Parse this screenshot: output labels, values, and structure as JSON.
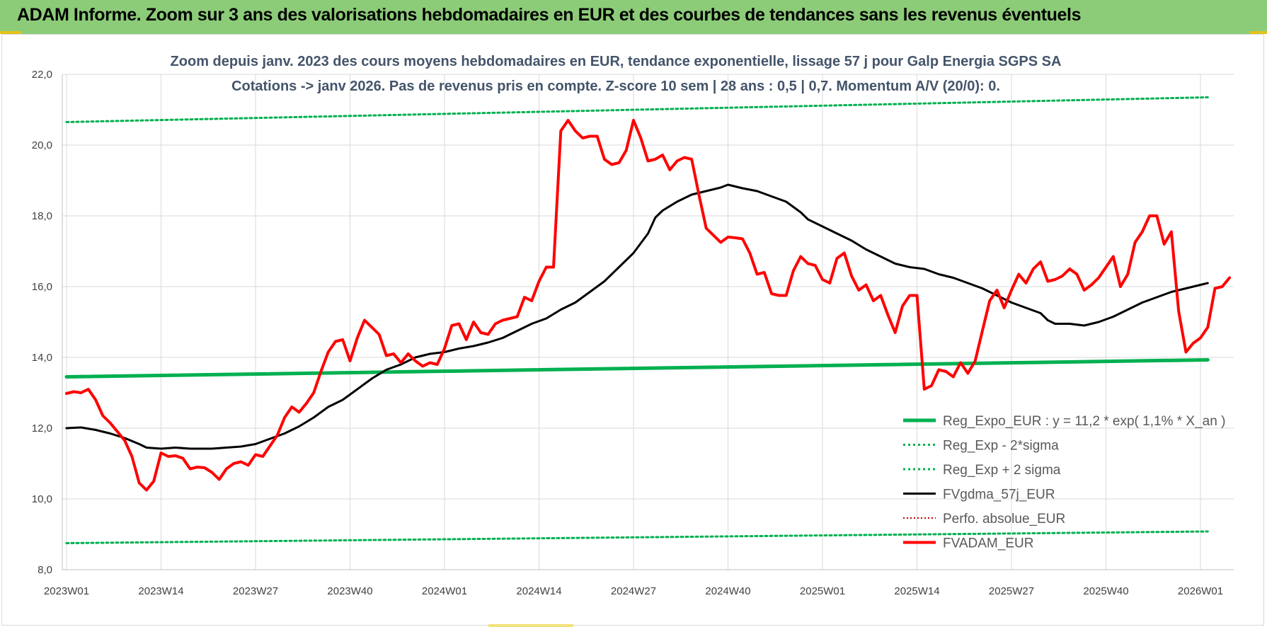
{
  "header": {
    "title": "ADAM Informe. Zoom sur 3 ans des valorisations hebdomadaires en EUR et des courbes de tendances sans les revenus éventuels"
  },
  "colors": {
    "header_bg": "#8ccc78",
    "reg_expo": "#00b050",
    "sigma": "#00b050",
    "fvgdma": "#000000",
    "perfo": "#c00000",
    "fvadam": "#ff0000",
    "grid": "#d9d9d9",
    "axis_text": "#404040",
    "title_text": "#44546a"
  },
  "chart_data": {
    "type": "line",
    "title": [
      "Zoom depuis janv. 2023 des cours moyens hebdomadaires en EUR, tendance exponentielle, lissage 57 j pour Galp Energia SGPS SA",
      "Cotations -> janv 2026. Pas de revenus pris en compte. Z-score 10 sem | 28 ans : 0,5 | 0,7. Momentum A/V (20/0): 0."
    ],
    "xlabel": "",
    "ylabel": "",
    "ylim": [
      8,
      22
    ],
    "yticks": [
      {
        "value": 8,
        "label": "8,0"
      },
      {
        "value": 10,
        "label": "10,0"
      },
      {
        "value": 12,
        "label": "12,0"
      },
      {
        "value": 14,
        "label": "14,0"
      },
      {
        "value": 16,
        "label": "16,0"
      },
      {
        "value": 18,
        "label": "18,0"
      },
      {
        "value": 20,
        "label": "20,0"
      },
      {
        "value": 22,
        "label": "22,0"
      }
    ],
    "xlim": [
      0,
      157
    ],
    "xticks": [
      {
        "week": 0,
        "label": "2023W01"
      },
      {
        "week": 13,
        "label": "2023W14"
      },
      {
        "week": 26,
        "label": "2023W27"
      },
      {
        "week": 39,
        "label": "2023W40"
      },
      {
        "week": 52,
        "label": "2024W01"
      },
      {
        "week": 65,
        "label": "2024W14"
      },
      {
        "week": 78,
        "label": "2024W27"
      },
      {
        "week": 91,
        "label": "2024W40"
      },
      {
        "week": 104,
        "label": "2025W01"
      },
      {
        "week": 117,
        "label": "2025W14"
      },
      {
        "week": 130,
        "label": "2025W27"
      },
      {
        "week": 143,
        "label": "2025W40"
      },
      {
        "week": 156,
        "label": "2026W01"
      }
    ],
    "grid": true,
    "legend_position": "bottom-right",
    "series": [
      {
        "name": "Reg_Expo_EUR : y = 11,2 * exp( 1,1% *  X_an )",
        "style": "thick-solid",
        "points": [
          [
            0,
            13.45
          ],
          [
            157,
            13.93
          ]
        ]
      },
      {
        "name": "Reg_Exp - 2*sigma",
        "style": "dotted",
        "points": [
          [
            0,
            8.75
          ],
          [
            157,
            9.08
          ]
        ]
      },
      {
        "name": "Reg_Exp + 2 sigma",
        "style": "dotted",
        "points": [
          [
            0,
            20.65
          ],
          [
            157,
            21.35
          ]
        ]
      },
      {
        "name": "FVgdma_57j_EUR",
        "style": "solid-black",
        "points": [
          [
            0,
            12.0
          ],
          [
            2,
            12.02
          ],
          [
            4,
            11.95
          ],
          [
            6,
            11.85
          ],
          [
            8,
            11.72
          ],
          [
            10,
            11.55
          ],
          [
            11,
            11.45
          ],
          [
            13,
            11.42
          ],
          [
            15,
            11.45
          ],
          [
            17,
            11.42
          ],
          [
            20,
            11.42
          ],
          [
            22,
            11.45
          ],
          [
            24,
            11.48
          ],
          [
            26,
            11.55
          ],
          [
            28,
            11.7
          ],
          [
            30,
            11.85
          ],
          [
            32,
            12.05
          ],
          [
            34,
            12.3
          ],
          [
            36,
            12.6
          ],
          [
            38,
            12.8
          ],
          [
            40,
            13.1
          ],
          [
            42,
            13.4
          ],
          [
            44,
            13.65
          ],
          [
            46,
            13.8
          ],
          [
            48,
            14.0
          ],
          [
            50,
            14.1
          ],
          [
            52,
            14.15
          ],
          [
            54,
            14.25
          ],
          [
            56,
            14.32
          ],
          [
            58,
            14.42
          ],
          [
            60,
            14.55
          ],
          [
            62,
            14.75
          ],
          [
            64,
            14.95
          ],
          [
            66,
            15.1
          ],
          [
            68,
            15.35
          ],
          [
            70,
            15.55
          ],
          [
            72,
            15.85
          ],
          [
            74,
            16.15
          ],
          [
            76,
            16.55
          ],
          [
            78,
            16.95
          ],
          [
            80,
            17.5
          ],
          [
            81,
            17.95
          ],
          [
            82,
            18.15
          ],
          [
            84,
            18.4
          ],
          [
            86,
            18.6
          ],
          [
            88,
            18.7
          ],
          [
            90,
            18.8
          ],
          [
            91,
            18.88
          ],
          [
            93,
            18.78
          ],
          [
            95,
            18.7
          ],
          [
            97,
            18.55
          ],
          [
            99,
            18.4
          ],
          [
            101,
            18.1
          ],
          [
            102,
            17.9
          ],
          [
            104,
            17.7
          ],
          [
            106,
            17.5
          ],
          [
            108,
            17.3
          ],
          [
            110,
            17.05
          ],
          [
            112,
            16.85
          ],
          [
            114,
            16.65
          ],
          [
            116,
            16.55
          ],
          [
            118,
            16.5
          ],
          [
            120,
            16.35
          ],
          [
            122,
            16.25
          ],
          [
            124,
            16.1
          ],
          [
            126,
            15.95
          ],
          [
            128,
            15.75
          ],
          [
            130,
            15.55
          ],
          [
            132,
            15.4
          ],
          [
            134,
            15.25
          ],
          [
            135,
            15.05
          ],
          [
            136,
            14.95
          ],
          [
            138,
            14.95
          ],
          [
            140,
            14.9
          ],
          [
            142,
            15.0
          ],
          [
            144,
            15.15
          ],
          [
            146,
            15.35
          ],
          [
            148,
            15.55
          ],
          [
            150,
            15.7
          ],
          [
            152,
            15.85
          ],
          [
            154,
            15.95
          ],
          [
            156,
            16.05
          ],
          [
            157,
            16.1
          ]
        ]
      },
      {
        "name": "Perfo. absolue_EUR",
        "style": "dotted-red",
        "points": []
      },
      {
        "name": "FVADAM_EUR",
        "style": "thick-red",
        "points": [
          [
            0,
            12.98
          ],
          [
            1,
            13.03
          ],
          [
            2,
            13.0
          ],
          [
            3,
            13.1
          ],
          [
            4,
            12.8
          ],
          [
            5,
            12.35
          ],
          [
            6,
            12.15
          ],
          [
            7,
            11.9
          ],
          [
            8,
            11.65
          ],
          [
            9,
            11.2
          ],
          [
            10,
            10.45
          ],
          [
            11,
            10.25
          ],
          [
            12,
            10.5
          ],
          [
            13,
            11.3
          ],
          [
            14,
            11.2
          ],
          [
            15,
            11.22
          ],
          [
            16,
            11.15
          ],
          [
            17,
            10.85
          ],
          [
            18,
            10.9
          ],
          [
            19,
            10.88
          ],
          [
            20,
            10.75
          ],
          [
            21,
            10.55
          ],
          [
            22,
            10.85
          ],
          [
            23,
            11.0
          ],
          [
            24,
            11.05
          ],
          [
            25,
            10.95
          ],
          [
            26,
            11.25
          ],
          [
            27,
            11.2
          ],
          [
            28,
            11.5
          ],
          [
            29,
            11.8
          ],
          [
            30,
            12.3
          ],
          [
            31,
            12.6
          ],
          [
            32,
            12.45
          ],
          [
            33,
            12.7
          ],
          [
            34,
            13.0
          ],
          [
            35,
            13.6
          ],
          [
            36,
            14.15
          ],
          [
            37,
            14.45
          ],
          [
            38,
            14.5
          ],
          [
            39,
            13.9
          ],
          [
            40,
            14.55
          ],
          [
            41,
            15.05
          ],
          [
            42,
            14.85
          ],
          [
            43,
            14.65
          ],
          [
            44,
            14.05
          ],
          [
            45,
            14.1
          ],
          [
            46,
            13.85
          ],
          [
            47,
            14.1
          ],
          [
            48,
            13.9
          ],
          [
            49,
            13.75
          ],
          [
            50,
            13.85
          ],
          [
            51,
            13.8
          ],
          [
            52,
            14.25
          ],
          [
            53,
            14.9
          ],
          [
            54,
            14.95
          ],
          [
            55,
            14.5
          ],
          [
            56,
            15.0
          ],
          [
            57,
            14.7
          ],
          [
            58,
            14.65
          ],
          [
            59,
            14.95
          ],
          [
            60,
            15.05
          ],
          [
            61,
            15.1
          ],
          [
            62,
            15.15
          ],
          [
            63,
            15.7
          ],
          [
            64,
            15.6
          ],
          [
            65,
            16.15
          ],
          [
            66,
            16.55
          ],
          [
            67,
            16.55
          ],
          [
            68,
            20.4
          ],
          [
            69,
            20.7
          ],
          [
            70,
            20.4
          ],
          [
            71,
            20.2
          ],
          [
            72,
            20.25
          ],
          [
            73,
            20.25
          ],
          [
            74,
            19.6
          ],
          [
            75,
            19.45
          ],
          [
            76,
            19.5
          ],
          [
            77,
            19.85
          ],
          [
            78,
            20.7
          ],
          [
            79,
            20.2
          ],
          [
            80,
            19.55
          ],
          [
            81,
            19.6
          ],
          [
            82,
            19.72
          ],
          [
            83,
            19.3
          ],
          [
            84,
            19.55
          ],
          [
            85,
            19.65
          ],
          [
            86,
            19.6
          ],
          [
            87,
            18.6
          ],
          [
            88,
            17.65
          ],
          [
            89,
            17.45
          ],
          [
            90,
            17.25
          ],
          [
            91,
            17.4
          ],
          [
            92,
            17.38
          ],
          [
            93,
            17.35
          ],
          [
            94,
            16.95
          ],
          [
            95,
            16.35
          ],
          [
            96,
            16.4
          ],
          [
            97,
            15.8
          ],
          [
            98,
            15.75
          ],
          [
            99,
            15.75
          ],
          [
            100,
            16.45
          ],
          [
            101,
            16.85
          ],
          [
            102,
            16.65
          ],
          [
            103,
            16.6
          ],
          [
            104,
            16.2
          ],
          [
            105,
            16.1
          ],
          [
            106,
            16.8
          ],
          [
            107,
            16.95
          ],
          [
            108,
            16.3
          ],
          [
            109,
            15.9
          ],
          [
            110,
            16.05
          ],
          [
            111,
            15.6
          ],
          [
            112,
            15.75
          ],
          [
            113,
            15.2
          ],
          [
            114,
            14.7
          ],
          [
            115,
            15.45
          ],
          [
            116,
            15.75
          ],
          [
            117,
            15.75
          ],
          [
            118,
            13.1
          ],
          [
            119,
            13.2
          ],
          [
            120,
            13.65
          ],
          [
            121,
            13.6
          ],
          [
            122,
            13.45
          ],
          [
            123,
            13.85
          ],
          [
            124,
            13.55
          ],
          [
            125,
            13.9
          ],
          [
            126,
            14.75
          ],
          [
            127,
            15.6
          ],
          [
            128,
            15.9
          ],
          [
            129,
            15.4
          ],
          [
            130,
            15.9
          ],
          [
            131,
            16.35
          ],
          [
            132,
            16.1
          ],
          [
            133,
            16.5
          ],
          [
            134,
            16.7
          ],
          [
            135,
            16.15
          ],
          [
            136,
            16.2
          ],
          [
            137,
            16.3
          ],
          [
            138,
            16.5
          ],
          [
            139,
            16.35
          ],
          [
            140,
            15.9
          ],
          [
            141,
            16.05
          ],
          [
            142,
            16.25
          ],
          [
            143,
            16.55
          ],
          [
            144,
            16.85
          ],
          [
            145,
            16.0
          ],
          [
            146,
            16.35
          ],
          [
            147,
            17.25
          ],
          [
            148,
            17.55
          ],
          [
            149,
            18.0
          ],
          [
            150,
            18.0
          ],
          [
            151,
            17.2
          ],
          [
            152,
            17.55
          ],
          [
            153,
            15.3
          ],
          [
            154,
            14.15
          ],
          [
            155,
            14.4
          ],
          [
            156,
            14.55
          ],
          [
            157,
            14.85
          ],
          [
            158,
            15.95
          ],
          [
            159,
            16.0
          ],
          [
            160,
            16.25
          ]
        ]
      }
    ]
  }
}
